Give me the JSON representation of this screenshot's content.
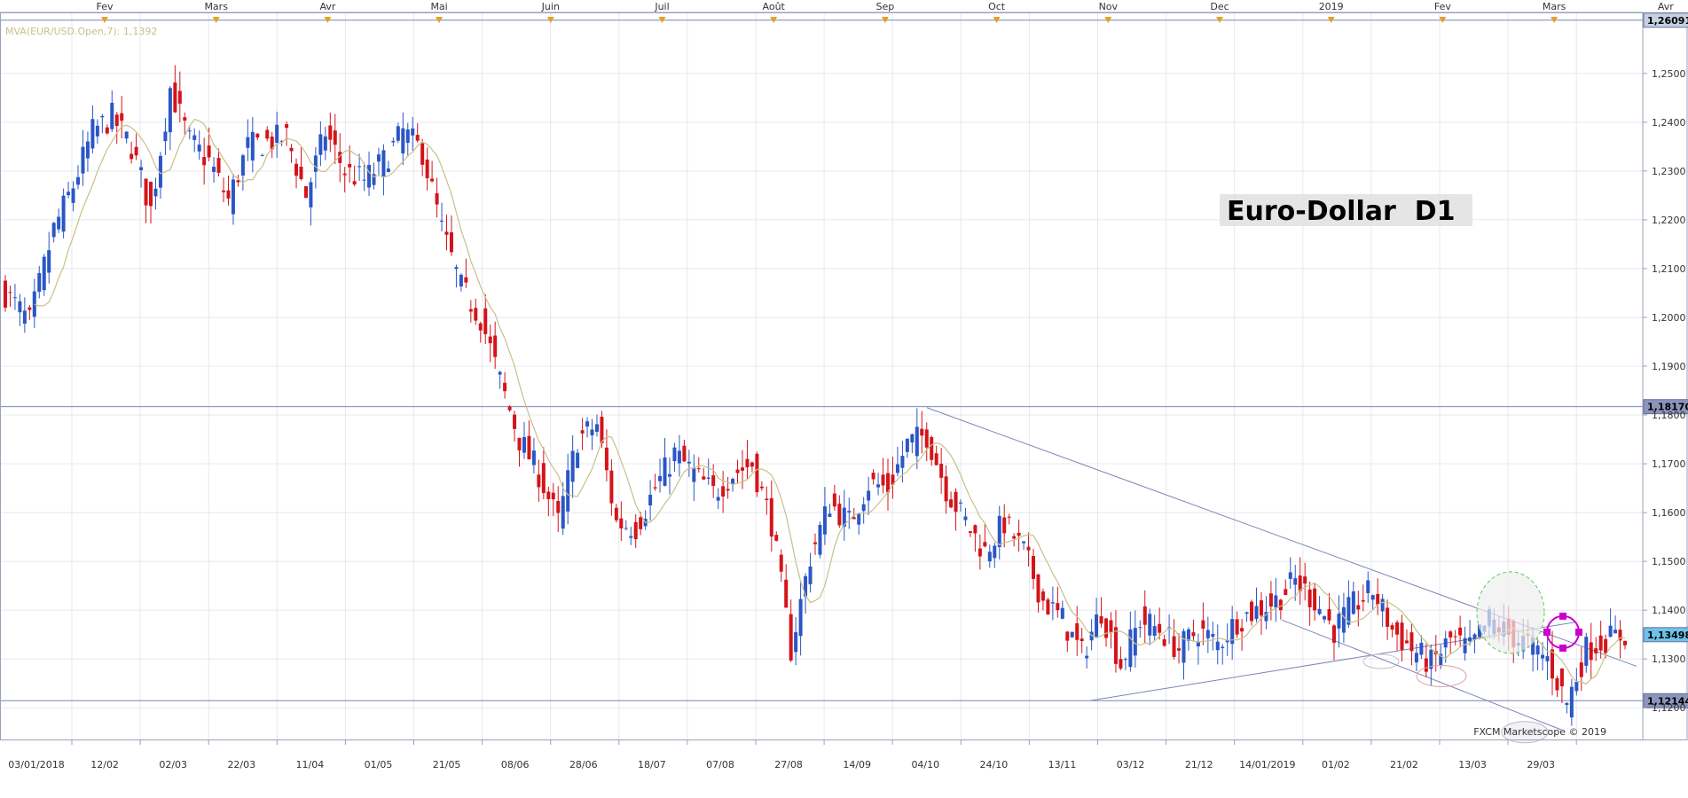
{
  "chart_data": {
    "type": "candlestick",
    "title": "Euro-Dollar  D1",
    "indicator_label": "MVA(EUR/USD.Open,7): 1,1392",
    "watermark": "FXCM Marketscope © 2019",
    "y_range": [
      1.1135,
      1.2625
    ],
    "y_ticks": [
      "1,2500",
      "1,2400",
      "1,2300",
      "1,2200",
      "1,2100",
      "1,2000",
      "1,1900",
      "1,1800",
      "1,1700",
      "1,1600",
      "1,1500",
      "1,1400",
      "1,1300",
      "1,1200"
    ],
    "x_date_labels": [
      "03/01/2018",
      "12/02",
      "02/03",
      "22/03",
      "11/04",
      "01/05",
      "21/05",
      "08/06",
      "28/06",
      "18/07",
      "07/08",
      "27/08",
      "14/09",
      "04/10",
      "24/10",
      "13/11",
      "03/12",
      "21/12",
      "14/01/2019",
      "01/02",
      "21/02",
      "13/03",
      "29/03"
    ],
    "month_labels": [
      "Fev",
      "Mars",
      "Avr",
      "Mai",
      "Juin",
      "Juil",
      "Août",
      "Sep",
      "Oct",
      "Nov",
      "Dec",
      "2019",
      "Fev",
      "Mars",
      "Avr"
    ],
    "price_tags": [
      {
        "label": "1,26091",
        "value": 1.26091,
        "bg": "#c4d0e4",
        "fg": "#000000"
      },
      {
        "label": "1,18170",
        "value": 1.1817,
        "bg": "#8b95bc",
        "fg": "#000000"
      },
      {
        "label": "1,13498",
        "value": 1.13498,
        "bg": "#6ec2ea",
        "fg": "#000000"
      },
      {
        "label": "1,12144",
        "value": 1.12144,
        "bg": "#8b95bc",
        "fg": "#000000"
      }
    ],
    "horizontal_lines": [
      1.26091,
      1.1817,
      1.12144
    ],
    "candles_close_anchors": [
      [
        0,
        1.205
      ],
      [
        5,
        1.199
      ],
      [
        10,
        1.218
      ],
      [
        14,
        1.227
      ],
      [
        18,
        1.238
      ],
      [
        22,
        1.241
      ],
      [
        26,
        1.235
      ],
      [
        30,
        1.222
      ],
      [
        34,
        1.247
      ],
      [
        38,
        1.236
      ],
      [
        42,
        1.232
      ],
      [
        46,
        1.224
      ],
      [
        50,
        1.235
      ],
      [
        54,
        1.236
      ],
      [
        58,
        1.237
      ],
      [
        62,
        1.225
      ],
      [
        66,
        1.238
      ],
      [
        70,
        1.23
      ],
      [
        74,
        1.228
      ],
      [
        78,
        1.232
      ],
      [
        82,
        1.238
      ],
      [
        86,
        1.234
      ],
      [
        90,
        1.218
      ],
      [
        94,
        1.206
      ],
      [
        98,
        1.2
      ],
      [
        102,
        1.187
      ],
      [
        106,
        1.175
      ],
      [
        110,
        1.168
      ],
      [
        114,
        1.158
      ],
      [
        118,
        1.175
      ],
      [
        122,
        1.178
      ],
      [
        126,
        1.158
      ],
      [
        130,
        1.157
      ],
      [
        134,
        1.165
      ],
      [
        138,
        1.172
      ],
      [
        142,
        1.168
      ],
      [
        146,
        1.164
      ],
      [
        150,
        1.168
      ],
      [
        154,
        1.17
      ],
      [
        158,
        1.158
      ],
      [
        162,
        1.132
      ],
      [
        166,
        1.151
      ],
      [
        170,
        1.162
      ],
      [
        174,
        1.158
      ],
      [
        178,
        1.166
      ],
      [
        182,
        1.165
      ],
      [
        186,
        1.174
      ],
      [
        190,
        1.176
      ],
      [
        194,
        1.165
      ],
      [
        198,
        1.158
      ],
      [
        202,
        1.152
      ],
      [
        206,
        1.158
      ],
      [
        210,
        1.152
      ],
      [
        214,
        1.142
      ],
      [
        218,
        1.138
      ],
      [
        222,
        1.131
      ],
      [
        226,
        1.14
      ],
      [
        230,
        1.129
      ],
      [
        234,
        1.138
      ],
      [
        238,
        1.136
      ],
      [
        242,
        1.132
      ],
      [
        246,
        1.136
      ],
      [
        250,
        1.133
      ],
      [
        254,
        1.138
      ],
      [
        258,
        1.14
      ],
      [
        262,
        1.142
      ],
      [
        266,
        1.146
      ],
      [
        270,
        1.142
      ],
      [
        274,
        1.136
      ],
      [
        278,
        1.141
      ],
      [
        282,
        1.144
      ],
      [
        286,
        1.136
      ],
      [
        290,
        1.132
      ],
      [
        294,
        1.129
      ],
      [
        298,
        1.134
      ],
      [
        302,
        1.132
      ],
      [
        306,
        1.138
      ],
      [
        310,
        1.135
      ],
      [
        314,
        1.133
      ],
      [
        318,
        1.13
      ],
      [
        322,
        1.121
      ],
      [
        326,
        1.132
      ],
      [
        330,
        1.134
      ],
      [
        334,
        1.135
      ]
    ],
    "series": [
      {
        "name": "MVA(EUR/USD.Open,7)",
        "color": "#c8c08a"
      }
    ],
    "colors": {
      "up": "#2a56c6",
      "down": "#d4141a",
      "grid": "#e6e8ee",
      "frame": "#9aa2b8",
      "trend": "#7d84b8",
      "axis_text": "#333333",
      "marker": "#e8a020"
    },
    "annotations": {
      "ellipses": [
        {
          "cx_date": "27/02",
          "cy": 1.1385,
          "rx": "small",
          "color": "#66cc66",
          "style": "dashed",
          "fill": "#f0f0f0"
        },
        {
          "cx_date": "17/01",
          "cy": 1.1272,
          "color": "#e0a0a0"
        },
        {
          "cx_date": "04/03",
          "cy": 1.1155,
          "color": "#c0c0d0"
        }
      ],
      "circle_marker": {
        "value": 1.1355,
        "color": "#cc00cc"
      }
    }
  }
}
